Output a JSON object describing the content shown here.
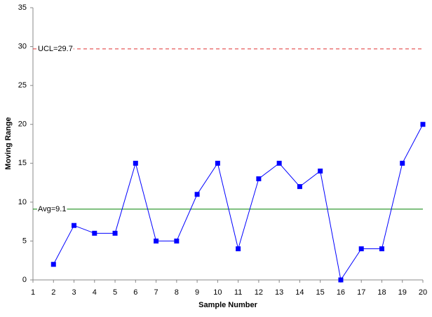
{
  "chart_data": {
    "type": "line",
    "x_label": "Sample Number",
    "y_label": "Moving Range",
    "x": [
      2,
      3,
      4,
      5,
      6,
      7,
      8,
      9,
      10,
      11,
      12,
      13,
      14,
      15,
      16,
      17,
      18,
      19,
      20
    ],
    "series": [
      {
        "color": "#0000ff",
        "values": [
          2,
          7,
          6,
          6,
          15,
          5,
          5,
          11,
          15,
          4,
          13,
          15,
          12,
          14,
          0,
          4,
          4,
          15,
          20
        ]
      }
    ],
    "xlim": [
      1,
      20
    ],
    "xticks": [
      1,
      2,
      3,
      4,
      5,
      6,
      7,
      8,
      9,
      10,
      11,
      12,
      13,
      14,
      15,
      16,
      17,
      18,
      19,
      20
    ],
    "ylim": [
      0,
      35
    ],
    "yticks": [
      0,
      5,
      10,
      15,
      20,
      25,
      30,
      35
    ],
    "grid": false,
    "reference_lines": [
      {
        "value": 29.7,
        "label": "UCL=29.7",
        "color": "#e03030",
        "style": "dashed"
      },
      {
        "value": 9.1,
        "label": "Avg=9.1",
        "color": "#008000",
        "style": "solid"
      }
    ]
  }
}
